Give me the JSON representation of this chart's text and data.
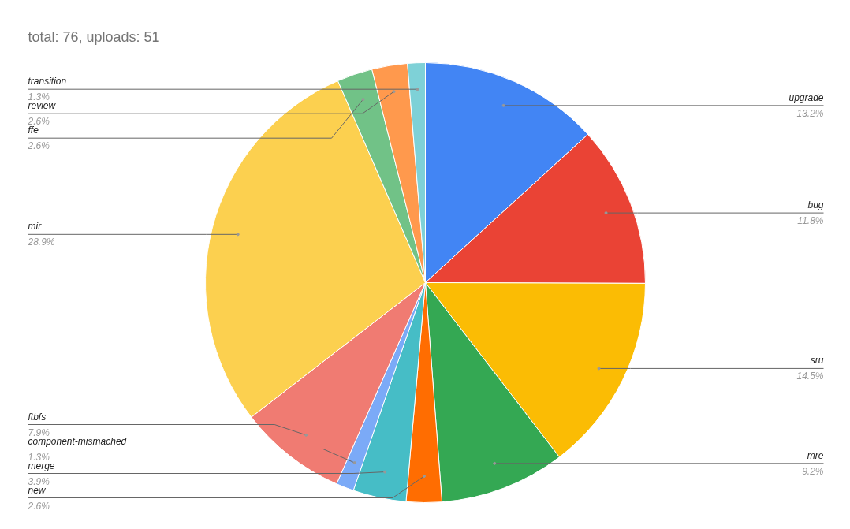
{
  "chart_data": {
    "type": "pie",
    "title": "total: 76, uploads: 51",
    "categories": [
      "upgrade",
      "bug",
      "sru",
      "mre",
      "new",
      "merge",
      "component-mismached",
      "ftbfs",
      "mir",
      "ffe",
      "review",
      "transition"
    ],
    "values": [
      13.2,
      11.8,
      14.5,
      9.2,
      2.6,
      3.9,
      1.3,
      7.9,
      28.9,
      2.6,
      2.6,
      1.3
    ],
    "value_labels": [
      "13.2%",
      "11.8%",
      "14.5%",
      "9.2%",
      "2.6%",
      "3.9%",
      "1.3%",
      "7.9%",
      "28.9%",
      "2.6%",
      "2.6%",
      "1.3%"
    ],
    "colors": [
      "#4285f4",
      "#ea4335",
      "#fbbc04",
      "#34a853",
      "#ff6d01",
      "#46bdc6",
      "#7baaf7",
      "#f07b72",
      "#fcd04f",
      "#71c287",
      "#ff994d",
      "#7ed1d7"
    ]
  }
}
